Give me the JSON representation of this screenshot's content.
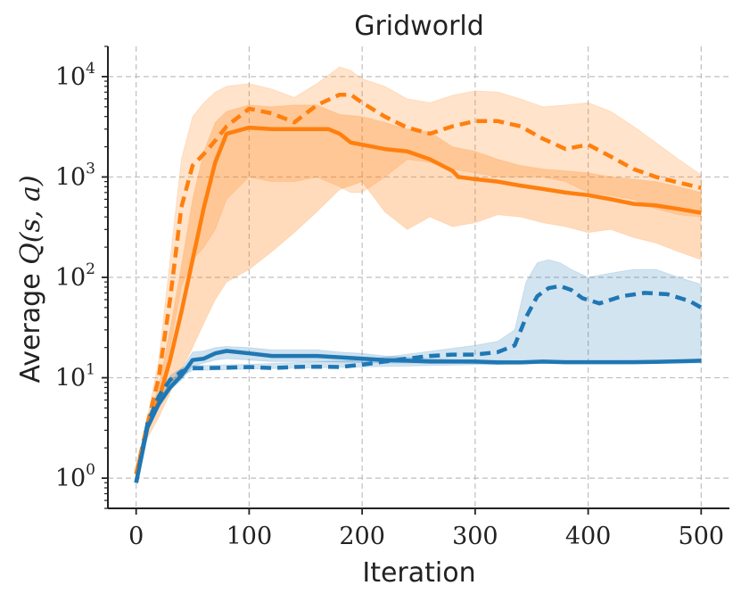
{
  "chart_data": {
    "type": "line",
    "title": "Gridworld",
    "xlabel": "Iteration",
    "ylabel_prefix": "Average ",
    "ylabel_math": "Q(s, a)",
    "xscale": "linear",
    "yscale": "log",
    "xlim": [
      -25,
      525
    ],
    "ylim": [
      0.5,
      20000
    ],
    "xticks": [
      0,
      100,
      200,
      300,
      400,
      500
    ],
    "xtick_labels": [
      "0",
      "100",
      "200",
      "300",
      "400",
      "500"
    ],
    "yticks": [
      1,
      10,
      100,
      1000,
      10000
    ],
    "ytick_labels": [
      {
        "base": "10",
        "exp": "0"
      },
      {
        "base": "10",
        "exp": "1"
      },
      {
        "base": "10",
        "exp": "2"
      },
      {
        "base": "10",
        "exp": "3"
      },
      {
        "base": "10",
        "exp": "4"
      }
    ],
    "grid": true,
    "colors": {
      "orange": "#ff7f0e",
      "blue": "#1f77b4",
      "grid": "#b0b0b0",
      "axis": "#222222"
    },
    "series": [
      {
        "name": "orange-dashed",
        "color": "#ff7f0e",
        "style": "dashed",
        "x": [
          0,
          10,
          20,
          30,
          40,
          50,
          60,
          70,
          80,
          100,
          120,
          140,
          160,
          180,
          190,
          200,
          220,
          240,
          260,
          280,
          300,
          320,
          340,
          360,
          380,
          400,
          420,
          440,
          460,
          480,
          500
        ],
        "y": [
          1.1,
          3.5,
          10,
          60,
          500,
          1300,
          1700,
          2300,
          3200,
          4800,
          4300,
          3500,
          5200,
          6600,
          6600,
          5500,
          4000,
          3100,
          2700,
          3200,
          3600,
          3600,
          3200,
          2400,
          1900,
          2100,
          1600,
          1200,
          1000,
          880,
          780
        ]
      },
      {
        "name": "orange-solid",
        "color": "#ff7f0e",
        "style": "solid",
        "x": [
          0,
          10,
          20,
          30,
          40,
          50,
          60,
          70,
          80,
          100,
          120,
          140,
          160,
          170,
          180,
          190,
          200,
          220,
          240,
          260,
          280,
          285,
          300,
          320,
          340,
          360,
          380,
          400,
          420,
          440,
          460,
          480,
          500
        ],
        "y": [
          1.1,
          3.2,
          6,
          15,
          45,
          150,
          500,
          1400,
          2700,
          3100,
          3000,
          3000,
          3000,
          3000,
          2700,
          2200,
          2100,
          1900,
          1800,
          1500,
          1150,
          1000,
          950,
          900,
          820,
          760,
          700,
          660,
          600,
          540,
          520,
          480,
          440
        ]
      },
      {
        "name": "blue-dashed",
        "color": "#1f77b4",
        "style": "dashed",
        "x": [
          0,
          10,
          20,
          30,
          40,
          50,
          60,
          80,
          100,
          120,
          140,
          160,
          180,
          200,
          220,
          240,
          260,
          280,
          300,
          320,
          335,
          345,
          355,
          365,
          375,
          385,
          395,
          410,
          430,
          450,
          470,
          490,
          500
        ],
        "y": [
          0.9,
          3.5,
          6.5,
          9.5,
          11.5,
          12.5,
          12.5,
          12.6,
          12.8,
          12.5,
          12.8,
          12.9,
          12.8,
          13.5,
          14.5,
          15.5,
          16.5,
          17,
          17,
          18,
          21,
          40,
          65,
          78,
          82,
          75,
          62,
          55,
          65,
          70,
          68,
          58,
          50
        ]
      },
      {
        "name": "blue-solid",
        "color": "#1f77b4",
        "style": "solid",
        "x": [
          0,
          10,
          20,
          30,
          40,
          50,
          60,
          70,
          80,
          100,
          120,
          140,
          160,
          180,
          200,
          220,
          240,
          260,
          280,
          300,
          320,
          340,
          360,
          380,
          400,
          420,
          440,
          460,
          480,
          500
        ],
        "y": [
          0.9,
          3.2,
          5.5,
          8,
          10.5,
          15,
          15.5,
          17.5,
          18.5,
          17.5,
          16.5,
          16.5,
          16.5,
          16,
          15.5,
          15,
          14.8,
          14.5,
          14.5,
          14.5,
          14.2,
          14.2,
          14.5,
          14.3,
          14.3,
          14.3,
          14.3,
          14.4,
          14.6,
          14.8
        ]
      }
    ],
    "bands": [
      {
        "name": "orange-dashed-band",
        "color": "#ff7f0e",
        "opacity": 0.22,
        "x": [
          0,
          10,
          20,
          30,
          40,
          50,
          60,
          70,
          80,
          100,
          120,
          140,
          160,
          180,
          190,
          200,
          220,
          240,
          260,
          280,
          300,
          320,
          340,
          360,
          380,
          400,
          420,
          440,
          460,
          480,
          500
        ],
        "lower": [
          1.1,
          3,
          6,
          20,
          80,
          150,
          200,
          300,
          600,
          1000,
          900,
          900,
          1000,
          800,
          700,
          700,
          1000,
          1500,
          1400,
          1200,
          1100,
          1000,
          1000,
          1000,
          900,
          700,
          650,
          600,
          480,
          420,
          400
        ],
        "upper": [
          1.1,
          4,
          15,
          150,
          1500,
          4000,
          5500,
          7000,
          8000,
          8500,
          7500,
          6200,
          8500,
          12500,
          11500,
          9500,
          8000,
          6000,
          5500,
          6500,
          7200,
          7000,
          6000,
          5000,
          5200,
          5500,
          4500,
          3200,
          2200,
          1500,
          1050
        ]
      },
      {
        "name": "orange-solid-band",
        "color": "#ff7f0e",
        "opacity": 0.28,
        "x": [
          0,
          10,
          20,
          30,
          40,
          50,
          60,
          70,
          80,
          100,
          120,
          140,
          160,
          180,
          200,
          220,
          240,
          260,
          280,
          300,
          320,
          340,
          360,
          380,
          400,
          420,
          440,
          460,
          480,
          500
        ],
        "lower": [
          1.1,
          2.5,
          4,
          7,
          12,
          20,
          35,
          60,
          90,
          120,
          180,
          280,
          450,
          750,
          900,
          450,
          300,
          400,
          320,
          350,
          420,
          400,
          350,
          320,
          280,
          300,
          250,
          220,
          180,
          150
        ],
        "upper": [
          1.1,
          4,
          8,
          30,
          130,
          600,
          1800,
          3500,
          4500,
          5200,
          5000,
          5200,
          5200,
          4200,
          4000,
          3500,
          3000,
          2800,
          2000,
          1800,
          1500,
          1300,
          1200,
          1150,
          1100,
          1000,
          950,
          900,
          800,
          700
        ]
      },
      {
        "name": "blue-dashed-band",
        "color": "#1f77b4",
        "opacity": 0.2,
        "x": [
          0,
          10,
          20,
          30,
          40,
          50,
          100,
          200,
          300,
          320,
          335,
          345,
          355,
          365,
          375,
          385,
          400,
          420,
          440,
          460,
          480,
          500
        ],
        "lower": [
          0.9,
          3.3,
          6,
          8.5,
          10.5,
          11.8,
          12.2,
          12.8,
          13.5,
          13.5,
          14,
          14,
          14,
          14,
          14,
          14,
          14,
          14,
          14,
          14,
          14,
          14
        ],
        "upper": [
          0.9,
          3.8,
          7,
          10.5,
          12.5,
          13.2,
          13.6,
          15,
          21,
          23,
          30,
          90,
          140,
          150,
          140,
          120,
          100,
          110,
          120,
          120,
          100,
          85
        ]
      },
      {
        "name": "blue-solid-band",
        "color": "#1f77b4",
        "opacity": 0.22,
        "x": [
          0,
          10,
          20,
          30,
          40,
          50,
          60,
          70,
          80,
          100,
          120,
          140,
          160,
          180,
          200,
          220,
          240,
          260,
          280,
          300,
          340,
          380,
          420,
          460,
          500
        ],
        "lower": [
          0.9,
          3,
          5,
          7.5,
          9.5,
          13,
          14,
          15,
          15.5,
          15,
          14.5,
          14.5,
          14.5,
          14.3,
          14.2,
          14,
          14,
          14,
          14,
          13.8,
          13.8,
          13.8,
          13.8,
          14,
          14.3
        ],
        "upper": [
          0.9,
          3.5,
          6,
          9,
          12,
          18,
          18.5,
          20,
          20.5,
          20,
          19,
          19,
          19,
          18,
          17.5,
          16.5,
          16,
          15.5,
          15.2,
          15,
          14.8,
          14.8,
          14.8,
          15,
          15.3
        ]
      }
    ]
  }
}
